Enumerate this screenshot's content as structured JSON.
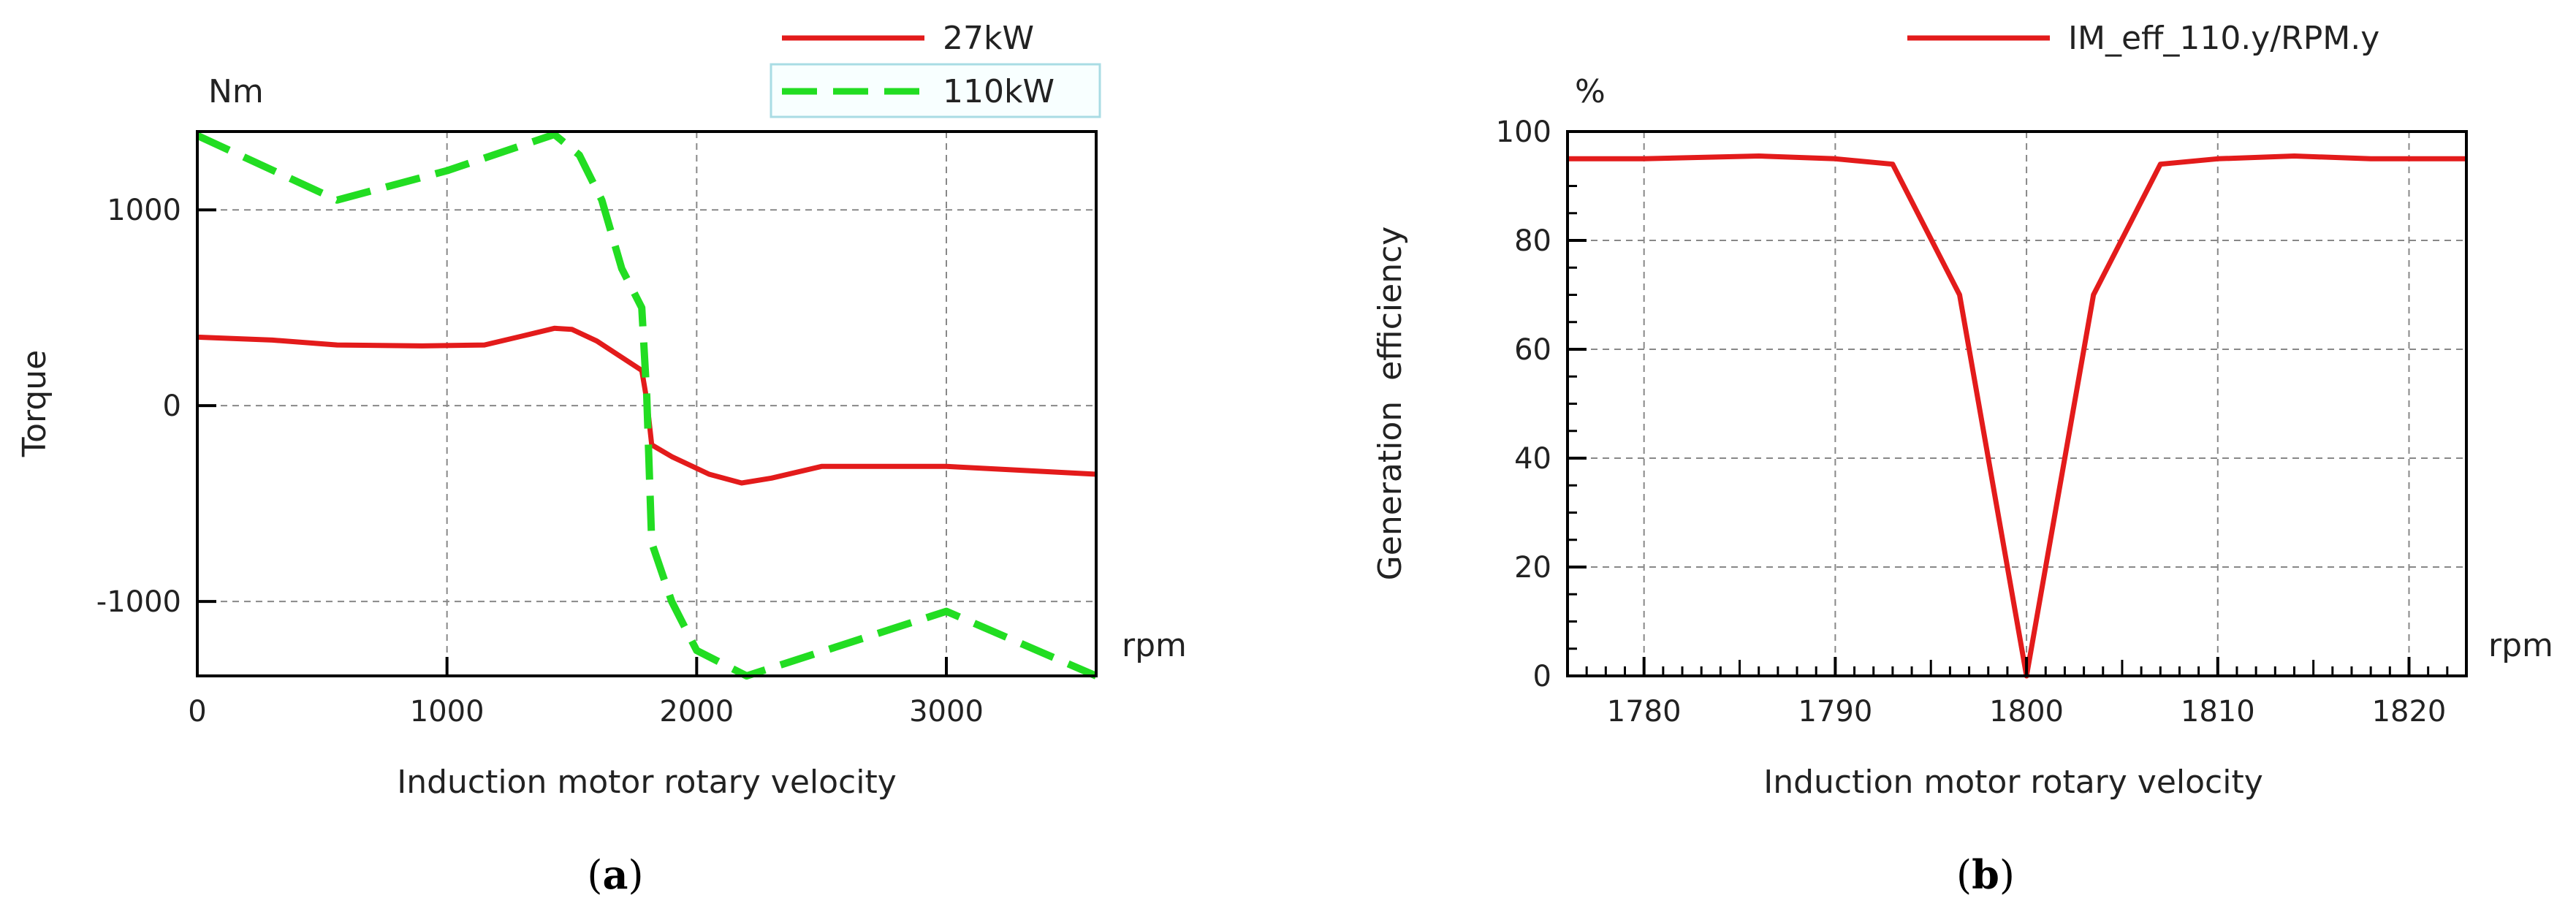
{
  "chart_data": [
    {
      "type": "line",
      "panel": "(a)",
      "panel_letter": "a",
      "title": "",
      "xlabel": "Induction motor rotary velocity",
      "ylabel": "Torque",
      "x_unit": "rpm",
      "y_unit": "Nm",
      "xlim": [
        0,
        3600
      ],
      "ylim": [
        -1380,
        1400
      ],
      "xticks": [
        0,
        1000,
        2000,
        3000
      ],
      "yticks": [
        1000,
        0,
        -1000
      ],
      "grid": true,
      "legend_position": "top-right",
      "series": [
        {
          "name": "27kW",
          "color": "#e31b1b",
          "dash": "solid",
          "x": [
            0,
            300,
            560,
            900,
            1150,
            1300,
            1430,
            1500,
            1600,
            1780,
            1800,
            1820,
            1900,
            2050,
            2180,
            2300,
            2500,
            3000,
            3300,
            3600
          ],
          "y": [
            350,
            335,
            310,
            305,
            310,
            355,
            395,
            390,
            330,
            180,
            30,
            -200,
            -260,
            -350,
            -395,
            -370,
            -310,
            -310,
            -330,
            -350
          ]
        },
        {
          "name": "110kW",
          "color": "#22dd22",
          "dash": "dashed",
          "x": [
            0,
            560,
            1000,
            1430,
            1530,
            1620,
            1700,
            1780,
            1800,
            1820,
            1900,
            2000,
            2200,
            3000,
            3600
          ],
          "y": [
            1380,
            1050,
            1200,
            1385,
            1280,
            1050,
            700,
            500,
            50,
            -700,
            -1000,
            -1250,
            -1380,
            -1050,
            -1380
          ]
        }
      ]
    },
    {
      "type": "line",
      "panel": "(b)",
      "panel_letter": "b",
      "title": "",
      "xlabel": "Induction motor rotary velocity",
      "ylabel": "Generation  efficiency",
      "x_unit": "rpm",
      "y_unit": "%",
      "xlim": [
        1776,
        1823
      ],
      "ylim": [
        0,
        100
      ],
      "xticks": [
        1780,
        1790,
        1800,
        1810,
        1820
      ],
      "yticks": [
        100,
        80,
        60,
        40,
        20,
        0
      ],
      "grid": true,
      "legend_position": "top-right",
      "series": [
        {
          "name": "IM_eff_110.y/RPM.y",
          "color": "#e31b1b",
          "dash": "solid",
          "x": [
            1776,
            1780,
            1786,
            1790,
            1793,
            1796.5,
            1800,
            1803.5,
            1807,
            1810,
            1814,
            1818,
            1823
          ],
          "y": [
            95,
            95,
            95.5,
            95,
            94,
            70,
            0,
            70,
            94,
            95,
            95.5,
            95,
            95
          ]
        }
      ]
    }
  ]
}
